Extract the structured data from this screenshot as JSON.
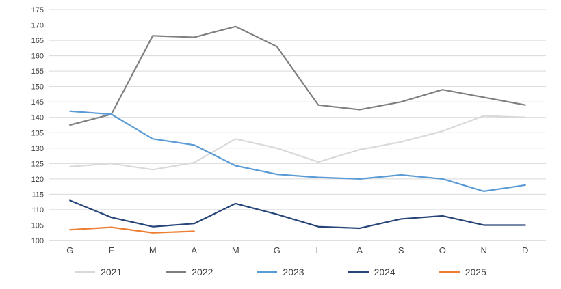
{
  "chart_data": {
    "type": "line",
    "title": "",
    "xlabel": "",
    "ylabel": "",
    "categories": [
      "G",
      "F",
      "M",
      "A",
      "M",
      "G",
      "L",
      "A",
      "S",
      "O",
      "N",
      "D"
    ],
    "series": [
      {
        "name": "2021",
        "color": "#d9d9d9",
        "values": [
          124,
          125,
          123,
          125.3,
          133,
          130,
          125.5,
          129.5,
          132,
          135.5,
          140.5,
          140
        ]
      },
      {
        "name": "2022",
        "color": "#7f7f7f",
        "values": [
          137.5,
          141,
          166.5,
          166,
          169.5,
          163,
          144,
          142.5,
          145,
          149,
          146.5,
          144
        ]
      },
      {
        "name": "2023",
        "color": "#5b9bd5",
        "values": [
          142,
          141,
          133,
          131,
          124.3,
          121.5,
          120.5,
          120,
          121.3,
          120,
          116,
          118
        ]
      },
      {
        "name": "2024",
        "color": "#264478",
        "values": [
          113,
          107.5,
          104.5,
          105.5,
          112,
          108.5,
          104.5,
          104,
          107,
          108,
          105,
          105
        ]
      },
      {
        "name": "2025",
        "color": "#ed7d31",
        "values": [
          103.5,
          104.3,
          102.5,
          103
        ]
      }
    ],
    "ylim": [
      100,
      175
    ],
    "ytick_step": 5,
    "grid": true,
    "grid_color": "#d9d9d9",
    "axis_color": "#bfbfbf",
    "tick_color": "#404040",
    "legend_position": "bottom"
  }
}
